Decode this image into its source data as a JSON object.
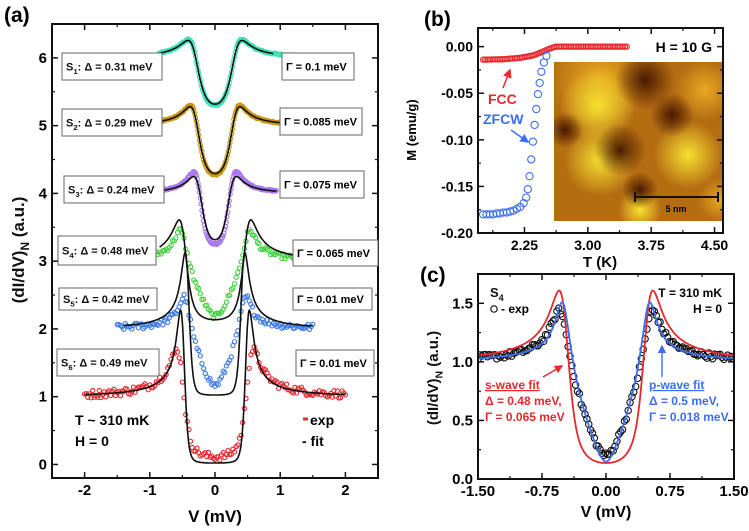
{
  "panel_labels": {
    "a": "(a)",
    "b": "(b)",
    "c": "(c)"
  },
  "chart_data": [
    {
      "id": "a",
      "type": "line",
      "xlabel": "V (mV)",
      "ylabel_main": "(dI/dV)",
      "ylabel_sub": "N",
      "ylabel_tail": " (a.u.)",
      "xlim": [
        -2.5,
        2.5
      ],
      "ylim": [
        -0.2,
        6.5
      ],
      "xticks": [
        -2,
        -1,
        0,
        1,
        2
      ],
      "xtick_labels": [
        "-2",
        "-1",
        "0",
        "1",
        "2"
      ],
      "yticks": [
        0,
        1,
        2,
        3,
        4,
        5,
        6
      ],
      "ytick_labels": [
        "0",
        "1",
        "2",
        "3",
        "4",
        "5",
        "6"
      ],
      "annotations": {
        "temp": "T ~ 310 mK",
        "field": "H = 0"
      },
      "legend": {
        "exp": "- exp",
        "fit": "- fit",
        "exp_color": "#e8282e"
      },
      "series": [
        {
          "name": "S",
          "sub": "1",
          "delta_text": ": Δ = 0.31 meV",
          "gamma_text": "Γ = 0.1 meV",
          "color": "#3fe0b8",
          "offset": 5,
          "fit": {
            "model": "s-wave",
            "delta": 0.31,
            "gamma": 0.1,
            "range": [
              -0.85,
              0.9
            ]
          },
          "exp": {
            "model": "s-wave",
            "delta": 0.31,
            "gamma": 0.095,
            "range": [
              -0.85,
              1.75
            ],
            "step": 0.012,
            "noise": 0.01
          }
        },
        {
          "name": "S",
          "sub": "2",
          "delta_text": ": Δ = 0.29 meV",
          "gamma_text": "Γ = 0.085 meV",
          "color": "#c9960e",
          "offset": 4,
          "fit": {
            "model": "s-wave",
            "delta": 0.29,
            "gamma": 0.085,
            "range": [
              -0.85,
              1.0
            ]
          },
          "exp": {
            "model": "s-wave",
            "delta": 0.29,
            "gamma": 0.08,
            "range": [
              -0.85,
              1.0
            ],
            "step": 0.012,
            "noise": 0.01
          }
        },
        {
          "name": "S",
          "sub": "3",
          "delta_text": ": Δ = 0.24 meV",
          "gamma_text": "Γ = 0.075 meV",
          "color": "#a878f0",
          "offset": 3,
          "fit": {
            "model": "s-wave",
            "delta": 0.24,
            "gamma": 0.075,
            "range": [
              -0.8,
              0.95
            ]
          },
          "exp": {
            "model": "s-wave",
            "delta": 0.25,
            "gamma": 0.06,
            "range": [
              -0.8,
              0.95
            ],
            "step": 0.012,
            "noise": 0.01
          }
        },
        {
          "name": "S",
          "sub": "4",
          "delta_text": ": Δ = 0.48 meV",
          "gamma_text": "Γ = 0.065 meV",
          "color": "#3ed23a",
          "offset": 2,
          "fit": {
            "model": "s-wave",
            "delta": 0.48,
            "gamma": 0.065,
            "range": [
              -0.85,
              1.3
            ]
          },
          "exp": {
            "model": "p-wave",
            "delta": 0.52,
            "gamma": 0.03,
            "range": [
              -0.9,
              1.5
            ],
            "step": 0.025,
            "noise": 0.04
          }
        },
        {
          "name": "S",
          "sub": "5",
          "delta_text": ": Δ = 0.42 meV",
          "gamma_text": "Γ = 0.01 meV",
          "color": "#3b7ae8",
          "offset": 1,
          "fit": {
            "model": "s-wave",
            "delta": 0.42,
            "gamma": 0.01,
            "range": [
              -1.4,
              1.5
            ]
          },
          "exp": {
            "model": "p-wave",
            "delta": 0.46,
            "gamma": 0.02,
            "range": [
              -1.5,
              1.5
            ],
            "step": 0.025,
            "noise": 0.05
          }
        },
        {
          "name": "S",
          "sub": "6",
          "delta_text": ": Δ = 0.49 meV",
          "gamma_text": "Γ = 0.01 meV",
          "color": "#e8282e",
          "offset": 0,
          "fit": {
            "model": "s-wave",
            "delta": 0.49,
            "gamma": 0.01,
            "range": [
              -2.0,
              2.0
            ]
          },
          "exp": {
            "model": "s-wave",
            "delta": 0.52,
            "gamma": 0.06,
            "range": [
              -2.0,
              2.0
            ],
            "step": 0.025,
            "noise": 0.06
          }
        }
      ]
    },
    {
      "id": "b",
      "type": "scatter",
      "xlabel": "T (K)",
      "ylabel": "M (emu/g)",
      "xlim": [
        1.7,
        4.6
      ],
      "ylim": [
        -0.2,
        0.02
      ],
      "xticks": [
        2.25,
        3.0,
        3.75,
        4.5
      ],
      "xtick_labels": [
        "2.25",
        "3.00",
        "3.75",
        "4.50"
      ],
      "yticks": [
        0,
        -0.05,
        -0.1,
        -0.15,
        -0.2
      ],
      "ytick_labels": [
        "0.00",
        "-0.05",
        "-0.10",
        "-0.15",
        "-0.20"
      ],
      "field_label": "H = 10 G",
      "inset": {
        "scalebar_label": "5 nm"
      },
      "series": [
        {
          "name": "FCC",
          "color": "#e8282e",
          "points_step": 0.02,
          "knots_T": [
            1.76,
            2.0,
            2.2,
            2.35,
            2.45,
            2.55,
            2.62,
            3.47
          ],
          "knots_M": [
            -0.014,
            -0.0135,
            -0.012,
            -0.0095,
            -0.006,
            -0.002,
            0.0,
            0.0
          ]
        },
        {
          "name": "ZFCW",
          "color": "#3b6ef0",
          "T": [
            1.76,
            1.8,
            1.84,
            1.88,
            1.92,
            1.96,
            2.0,
            2.04,
            2.08,
            2.12,
            2.16,
            2.2,
            2.24,
            2.27,
            2.29,
            2.31,
            2.33,
            2.35,
            2.37,
            2.39,
            2.41,
            2.43,
            2.45,
            2.48,
            2.51
          ],
          "M": [
            -0.18,
            -0.18,
            -0.18,
            -0.18,
            -0.179,
            -0.179,
            -0.178,
            -0.178,
            -0.177,
            -0.176,
            -0.174,
            -0.172,
            -0.168,
            -0.162,
            -0.153,
            -0.139,
            -0.121,
            -0.102,
            -0.084,
            -0.067,
            -0.051,
            -0.039,
            -0.027,
            -0.017,
            -0.01
          ]
        }
      ]
    },
    {
      "id": "c",
      "type": "line",
      "xlabel": "V (mV)",
      "ylabel_main": "(dI/dV)",
      "ylabel_sub": "N",
      "ylabel_tail": " (a.u.)",
      "xlim": [
        -1.5,
        1.5
      ],
      "ylim": [
        0,
        1.75
      ],
      "xticks": [
        -1.5,
        -0.75,
        0,
        0.75,
        1.5
      ],
      "xtick_labels": [
        "-1.50",
        "-0.75",
        "0.00",
        "0.75",
        "1.50"
      ],
      "yticks": [
        0,
        0.5,
        1.0,
        1.5
      ],
      "ytick_labels": [
        "0.0",
        "0.5",
        "1.0",
        "1.5"
      ],
      "sample": {
        "name": "S",
        "sub": "4"
      },
      "legend_exp": "- exp",
      "conditions": {
        "temp": "T = 310 mK",
        "field": "H = 0"
      },
      "exp": {
        "model": "p-wave",
        "delta": 0.53,
        "gamma": 0.035,
        "range": [
          -1.5,
          1.5
        ],
        "step": 0.022,
        "noise": 0.025,
        "color": "#111111"
      },
      "fits": [
        {
          "model": "s-wave",
          "delta": 0.48,
          "gamma": 0.065,
          "color": "#e8282e",
          "label": "s-wave fit",
          "delta_text": "Δ = 0.48 meV,",
          "gamma_text": "Γ = 0.065 meV"
        },
        {
          "model": "p-wave",
          "delta": 0.5,
          "gamma": 0.018,
          "color": "#3b6ef0",
          "label": "p-wave fit",
          "delta_text": "Δ = 0.5 meV,",
          "gamma_text": "Γ = 0.018 meV"
        }
      ]
    }
  ]
}
